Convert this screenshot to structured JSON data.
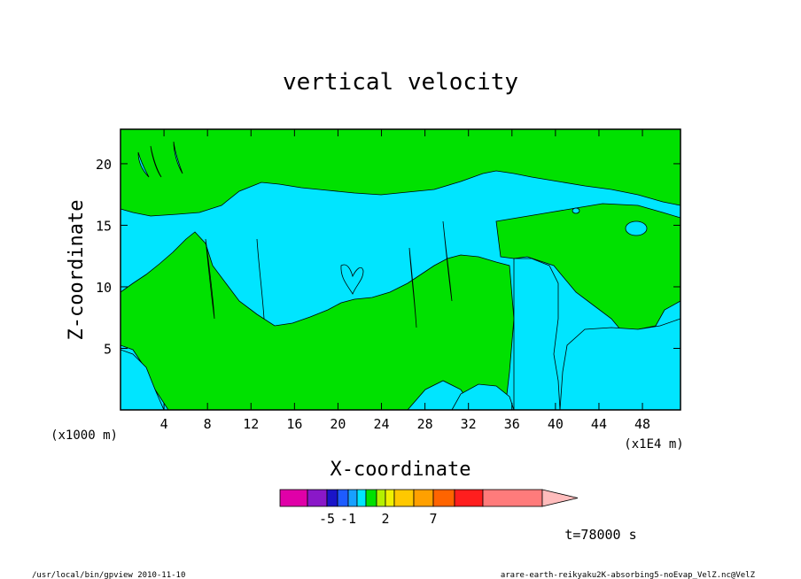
{
  "chart_data": {
    "type": "heatmap",
    "title": "vertical velocity",
    "xlabel": "X-coordinate",
    "ylabel": "Z-coordinate",
    "x_unit_left": "(x1000 m)",
    "x_unit_right": "(x1E4 m)",
    "x_ticks": [
      4,
      8,
      12,
      16,
      20,
      24,
      28,
      32,
      36,
      40,
      44,
      48
    ],
    "y_ticks": [
      5,
      10,
      15,
      20
    ],
    "xlim": [
      0,
      51.5
    ],
    "ylim": [
      0,
      22.8
    ],
    "colorbar": {
      "colors": [
        "#e000a8",
        "#8a18c8",
        "#1a14c8",
        "#1e5cff",
        "#18a0ff",
        "#00e5ff",
        "#00e100",
        "#b4f000",
        "#f0f000",
        "#ffc800",
        "#ffa000",
        "#ff6400",
        "#ff1e1e",
        "#ff7b7b",
        "#ffbcbc"
      ],
      "tick_labels": [
        "-5",
        "-1",
        "2",
        "7"
      ],
      "tick_boundaries": [
        2,
        4,
        8,
        11
      ]
    },
    "regions": {
      "cyan_color": "#00e5ff",
      "green_color": "#00e100"
    }
  },
  "annotations": {
    "time": "t=78000 s",
    "footer_left": "/usr/local/bin/gpview  2010-11-10",
    "footer_right": "arare-earth-reikyaku2K-absorbing5-noEvap_VelZ.nc@VelZ"
  }
}
